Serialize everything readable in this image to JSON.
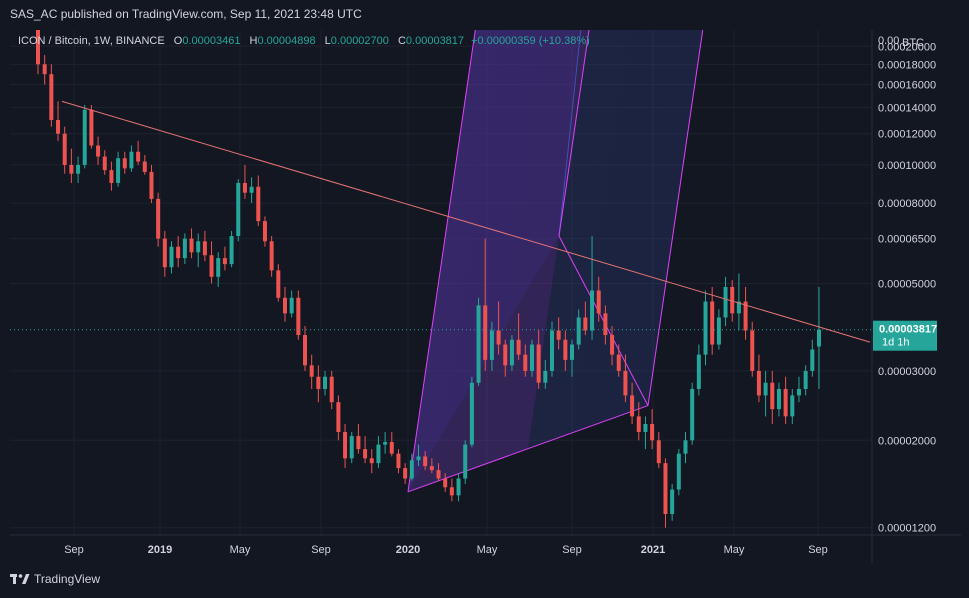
{
  "header": {
    "published": "SAS_AC published on TradingView.com, Sep 11, 2021 23:48 UTC"
  },
  "legend": {
    "symbol": "ICON / Bitcoin, 1W, BINANCE",
    "o_label": "O",
    "o_value": "0.00003461",
    "h_label": "H",
    "h_value": "0.00004898",
    "l_label": "L",
    "l_value": "0.00002700",
    "c_label": "C",
    "c_value": "0.00003817",
    "change": "+0.00000359 (+10.38%)"
  },
  "price_axis": {
    "currency": "BTC",
    "ticks": [
      "0.00",
      "0.00020000",
      "0.00018000",
      "0.00016000",
      "0.00014000",
      "0.00012000",
      "0.00010000",
      "0.00008000",
      "0.00006500",
      "0.00005000",
      "0.00003000",
      "0.00002000",
      "0.00001200"
    ],
    "last_price": "0.00003817",
    "countdown": "1d 1h"
  },
  "time_axis": {
    "ticks": [
      "Sep",
      "2019",
      "May",
      "Sep",
      "2020",
      "May",
      "Sep",
      "2021",
      "May",
      "Sep"
    ]
  },
  "footer": {
    "brand": "TradingView"
  },
  "colors": {
    "bg": "#131722",
    "up": "#26a69a",
    "down": "#ef5350",
    "fork": "#e040fb",
    "trend": "#e57373"
  },
  "chart_data": {
    "type": "candlestick",
    "title": "ICON / Bitcoin, 1W, BINANCE",
    "scale": "log",
    "ylim": [
      1.15e-05,
      0.00022
    ],
    "x_ticks": [
      "Sep",
      "2019",
      "May",
      "Sep",
      "2020",
      "May",
      "Sep",
      "2021",
      "May",
      "Sep"
    ],
    "y_ticks": [
      0.0002,
      0.00018,
      0.00016,
      0.00014,
      0.00012,
      0.0001,
      8e-05,
      6.5e-05,
      5e-05,
      3e-05,
      2e-05,
      1.2e-05
    ],
    "last": {
      "open": 3.461e-05,
      "high": 4.898e-05,
      "low": 2.7e-05,
      "close": 3.817e-05,
      "change": 3.59e-06,
      "change_pct": 10.38
    },
    "candles": [
      [
        0.00026,
        0.00027,
        0.00017,
        0.00018
      ],
      [
        0.00018,
        0.00019,
        0.00016,
        0.00017
      ],
      [
        0.00017,
        0.00018,
        0.000125,
        0.00013
      ],
      [
        0.00013,
        0.000145,
        0.000115,
        0.00012
      ],
      [
        0.00012,
        0.000125,
        9.5e-05,
        0.0001
      ],
      [
        0.0001,
        0.00011,
        9e-05,
        9.5e-05
      ],
      [
        9.5e-05,
        0.000105,
        9e-05,
        0.0001
      ],
      [
        0.0001,
        0.000142,
        9.8e-05,
        0.000138
      ],
      [
        0.000138,
        0.000142,
        0.00011,
        0.000112
      ],
      [
        0.000112,
        0.000118,
        0.0001,
        0.000105
      ],
      [
        0.000105,
        0.000109,
        9.44e-05,
        9.7e-05
      ],
      [
        9.7e-05,
        0.000102,
        8.6e-05,
        9e-05
      ],
      [
        9e-05,
        0.000108,
        8.8e-05,
        0.000104
      ],
      [
        0.000104,
        0.000108,
        9.5e-05,
        9.8e-05
      ],
      [
        9.8e-05,
        0.000112,
        9.6e-05,
        0.000108
      ],
      [
        0.000108,
        0.000115,
        0.0001,
        0.000102
      ],
      [
        0.000102,
        0.000106,
        9.44e-05,
        9.6e-05
      ],
      [
        9.6e-05,
        0.0001,
        8e-05,
        8.2e-05
      ],
      [
        8.2e-05,
        8.5e-05,
        6.2e-05,
        6.5e-05
      ],
      [
        6.5e-05,
        6.8e-05,
        5.2e-05,
        5.5e-05
      ],
      [
        5.5e-05,
        6.4e-05,
        5.3e-05,
        6.2e-05
      ],
      [
        6.2e-05,
        6.6e-05,
        5.5e-05,
        5.8e-05
      ],
      [
        5.8e-05,
        6.7e-05,
        5.6e-05,
        6.5e-05
      ],
      [
        6.5e-05,
        6.9e-05,
        5.8e-05,
        6e-05
      ],
      [
        6e-05,
        6.7e-05,
        5.5e-05,
        6.4e-05
      ],
      [
        6.4e-05,
        6.8e-05,
        5.7e-05,
        5.9e-05
      ],
      [
        5.9e-05,
        6.4e-05,
        5e-05,
        5.2e-05
      ],
      [
        5.2e-05,
        6e-05,
        4.9e-05,
        5.8e-05
      ],
      [
        5.8e-05,
        6.2e-05,
        5.4e-05,
        5.6e-05
      ],
      [
        5.6e-05,
        6.8e-05,
        5.5e-05,
        6.6e-05
      ],
      [
        6.6e-05,
        9.2e-05,
        6.4e-05,
        9e-05
      ],
      [
        9e-05,
        0.0001,
        8.2e-05,
        8.5e-05
      ],
      [
        8.5e-05,
        9.3e-05,
        8e-05,
        8.8e-05
      ],
      [
        8.8e-05,
        9.4e-05,
        7e-05,
        7.2e-05
      ],
      [
        7.2e-05,
        7.4e-05,
        6.2e-05,
        6.4e-05
      ],
      [
        6.4e-05,
        6.6e-05,
        5.2e-05,
        5.4e-05
      ],
      [
        5.4e-05,
        5.6e-05,
        4.5e-05,
        4.6e-05
      ],
      [
        4.6e-05,
        4.9e-05,
        4e-05,
        4.2e-05
      ],
      [
        4.2e-05,
        4.8e-05,
        4.1e-05,
        4.6e-05
      ],
      [
        4.6e-05,
        4.8e-05,
        3.6e-05,
        3.7e-05
      ],
      [
        3.7e-05,
        3.9e-05,
        3e-05,
        3.1e-05
      ],
      [
        3.1e-05,
        3.3e-05,
        2.7e-05,
        2.9e-05
      ],
      [
        2.9e-05,
        3.1e-05,
        2.5e-05,
        2.7e-05
      ],
      [
        2.7e-05,
        3e-05,
        2.6e-05,
        2.9e-05
      ],
      [
        2.9e-05,
        3e-05,
        2.4e-05,
        2.5e-05
      ],
      [
        2.5e-05,
        2.6e-05,
        2e-05,
        2.1e-05
      ],
      [
        2.1e-05,
        2.2e-05,
        1.7e-05,
        1.8e-05
      ],
      [
        1.8e-05,
        2.1e-05,
        1.75e-05,
        2.05e-05
      ],
      [
        2.05e-05,
        2.2e-05,
        1.85e-05,
        1.9e-05
      ],
      [
        1.9e-05,
        2.05e-05,
        1.75e-05,
        1.8e-05
      ],
      [
        1.8e-05,
        1.9e-05,
        1.65e-05,
        1.75e-05
      ],
      [
        1.75e-05,
        2.05e-05,
        1.7e-05,
        1.95e-05
      ],
      [
        1.95e-05,
        2.1e-05,
        1.85e-05,
        1.98e-05
      ],
      [
        1.98e-05,
        2.1e-05,
        1.82e-05,
        1.85e-05
      ],
      [
        1.85e-05,
        1.9e-05,
        1.65e-05,
        1.7e-05
      ],
      [
        1.7e-05,
        1.75e-05,
        1.55e-05,
        1.6e-05
      ],
      [
        1.6e-05,
        1.85e-05,
        1.58e-05,
        1.78e-05
      ],
      [
        1.78e-05,
        1.95e-05,
        1.72e-05,
        1.82e-05
      ],
      [
        1.82e-05,
        1.88e-05,
        1.68e-05,
        1.72e-05
      ],
      [
        1.72e-05,
        1.8e-05,
        1.65e-05,
        1.68e-05
      ],
      [
        1.68e-05,
        1.75e-05,
        1.58e-05,
        1.6e-05
      ],
      [
        1.6e-05,
        1.65e-05,
        1.48e-05,
        1.52e-05
      ],
      [
        1.52e-05,
        1.6e-05,
        1.4e-05,
        1.45e-05
      ],
      [
        1.45e-05,
        1.65e-05,
        1.4e-05,
        1.6e-05
      ],
      [
        1.6e-05,
        2e-05,
        1.55e-05,
        1.95e-05
      ],
      [
        1.95e-05,
        2.9e-05,
        1.92e-05,
        2.8e-05
      ],
      [
        2.8e-05,
        4.6e-05,
        2.75e-05,
        4.4e-05
      ],
      [
        4.4e-05,
        6.5e-05,
        3e-05,
        3.2e-05
      ],
      [
        3.2e-05,
        4e-05,
        3e-05,
        3.8e-05
      ],
      [
        3.8e-05,
        4.5e-05,
        3.3e-05,
        3.5e-05
      ],
      [
        3.5e-05,
        3.6e-05,
        2.9e-05,
        3.1e-05
      ],
      [
        3.1e-05,
        3.7e-05,
        3e-05,
        3.6e-05
      ],
      [
        3.6e-05,
        4.2e-05,
        3.2e-05,
        3.3e-05
      ],
      [
        3.3e-05,
        3.5e-05,
        2.9e-05,
        3e-05
      ],
      [
        3e-05,
        3.6e-05,
        2.9e-05,
        3.5e-05
      ],
      [
        3.5e-05,
        3.8e-05,
        2.7e-05,
        2.8e-05
      ],
      [
        2.8e-05,
        3.2e-05,
        2.7e-05,
        3e-05
      ],
      [
        3e-05,
        4e-05,
        2.9e-05,
        3.8e-05
      ],
      [
        3.8e-05,
        4.1e-05,
        3.4e-05,
        3.6e-05
      ],
      [
        3.6e-05,
        3.8e-05,
        3e-05,
        3.2e-05
      ],
      [
        3.2e-05,
        3.6e-05,
        2.9e-05,
        3.5e-05
      ],
      [
        3.5e-05,
        4.3e-05,
        3.4e-05,
        4.1e-05
      ],
      [
        4.1e-05,
        4.5e-05,
        3.7e-05,
        3.8e-05
      ],
      [
        3.8e-05,
        6.6e-05,
        3.6e-05,
        4.8e-05
      ],
      [
        4.8e-05,
        5.2e-05,
        4e-05,
        4.2e-05
      ],
      [
        4.2e-05,
        4.4e-05,
        3.5e-05,
        3.7e-05
      ],
      [
        3.7e-05,
        3.9e-05,
        3.1e-05,
        3.3e-05
      ],
      [
        3.3e-05,
        3.5e-05,
        2.9e-05,
        3e-05
      ],
      [
        3e-05,
        3.3e-05,
        2.5e-05,
        2.6e-05
      ],
      [
        2.6e-05,
        2.8e-05,
        2.2e-05,
        2.3e-05
      ],
      [
        2.3e-05,
        2.5e-05,
        2e-05,
        2.1e-05
      ],
      [
        2.1e-05,
        2.3e-05,
        1.9e-05,
        2.2e-05
      ],
      [
        2.2e-05,
        2.4e-05,
        1.9e-05,
        2e-05
      ],
      [
        2e-05,
        2.1e-05,
        1.7e-05,
        1.75e-05
      ],
      [
        1.75e-05,
        1.8e-05,
        1.2e-05,
        1.3e-05
      ],
      [
        1.3e-05,
        1.55e-05,
        1.25e-05,
        1.5e-05
      ],
      [
        1.5e-05,
        1.9e-05,
        1.45e-05,
        1.85e-05
      ],
      [
        1.85e-05,
        2.1e-05,
        1.75e-05,
        2e-05
      ],
      [
        2e-05,
        2.8e-05,
        1.95e-05,
        2.7e-05
      ],
      [
        2.7e-05,
        3.5e-05,
        2.6e-05,
        3.3e-05
      ],
      [
        3.3e-05,
        4.8e-05,
        3.1e-05,
        4.5e-05
      ],
      [
        4.5e-05,
        4.9e-05,
        3.3e-05,
        3.5e-05
      ],
      [
        3.5e-05,
        4.3e-05,
        3.4e-05,
        4.1e-05
      ],
      [
        4.1e-05,
        5.2e-05,
        3.9e-05,
        4.9e-05
      ],
      [
        4.9e-05,
        5.1e-05,
        4e-05,
        4.2e-05
      ],
      [
        4.2e-05,
        5.3e-05,
        3.8e-05,
        4.5e-05
      ],
      [
        4.5e-05,
        4.9e-05,
        3.6e-05,
        3.8e-05
      ],
      [
        3.8e-05,
        4e-05,
        2.9e-05,
        3e-05
      ],
      [
        3e-05,
        3.3e-05,
        2.5e-05,
        2.6e-05
      ],
      [
        2.6e-05,
        3e-05,
        2.3e-05,
        2.8e-05
      ],
      [
        2.8e-05,
        3e-05,
        2.2e-05,
        2.4e-05
      ],
      [
        2.4e-05,
        2.8e-05,
        2.3e-05,
        2.7e-05
      ],
      [
        2.7e-05,
        2.9e-05,
        2.2e-05,
        2.3e-05
      ],
      [
        2.3e-05,
        2.7e-05,
        2.2e-05,
        2.6e-05
      ],
      [
        2.6e-05,
        2.9e-05,
        2.5e-05,
        2.7e-05
      ],
      [
        2.7e-05,
        3.1e-05,
        2.6e-05,
        3e-05
      ],
      [
        3e-05,
        3.6e-05,
        2.9e-05,
        3.4e-05
      ],
      [
        3.461e-05,
        4.898e-05,
        2.7e-05,
        3.817e-05
      ]
    ],
    "drawings": [
      {
        "type": "trend-line",
        "from": [
          "2018-08",
          0.000145
        ],
        "to": [
          "2021-09",
          3.55e-05
        ]
      },
      {
        "type": "pitchfork",
        "pivot": [
          "2020-08",
          6.6e-05
        ],
        "a": [
          "2019-12",
          1.48e-05
        ],
        "b": [
          "2020-12",
          2.45e-05
        ]
      }
    ]
  }
}
